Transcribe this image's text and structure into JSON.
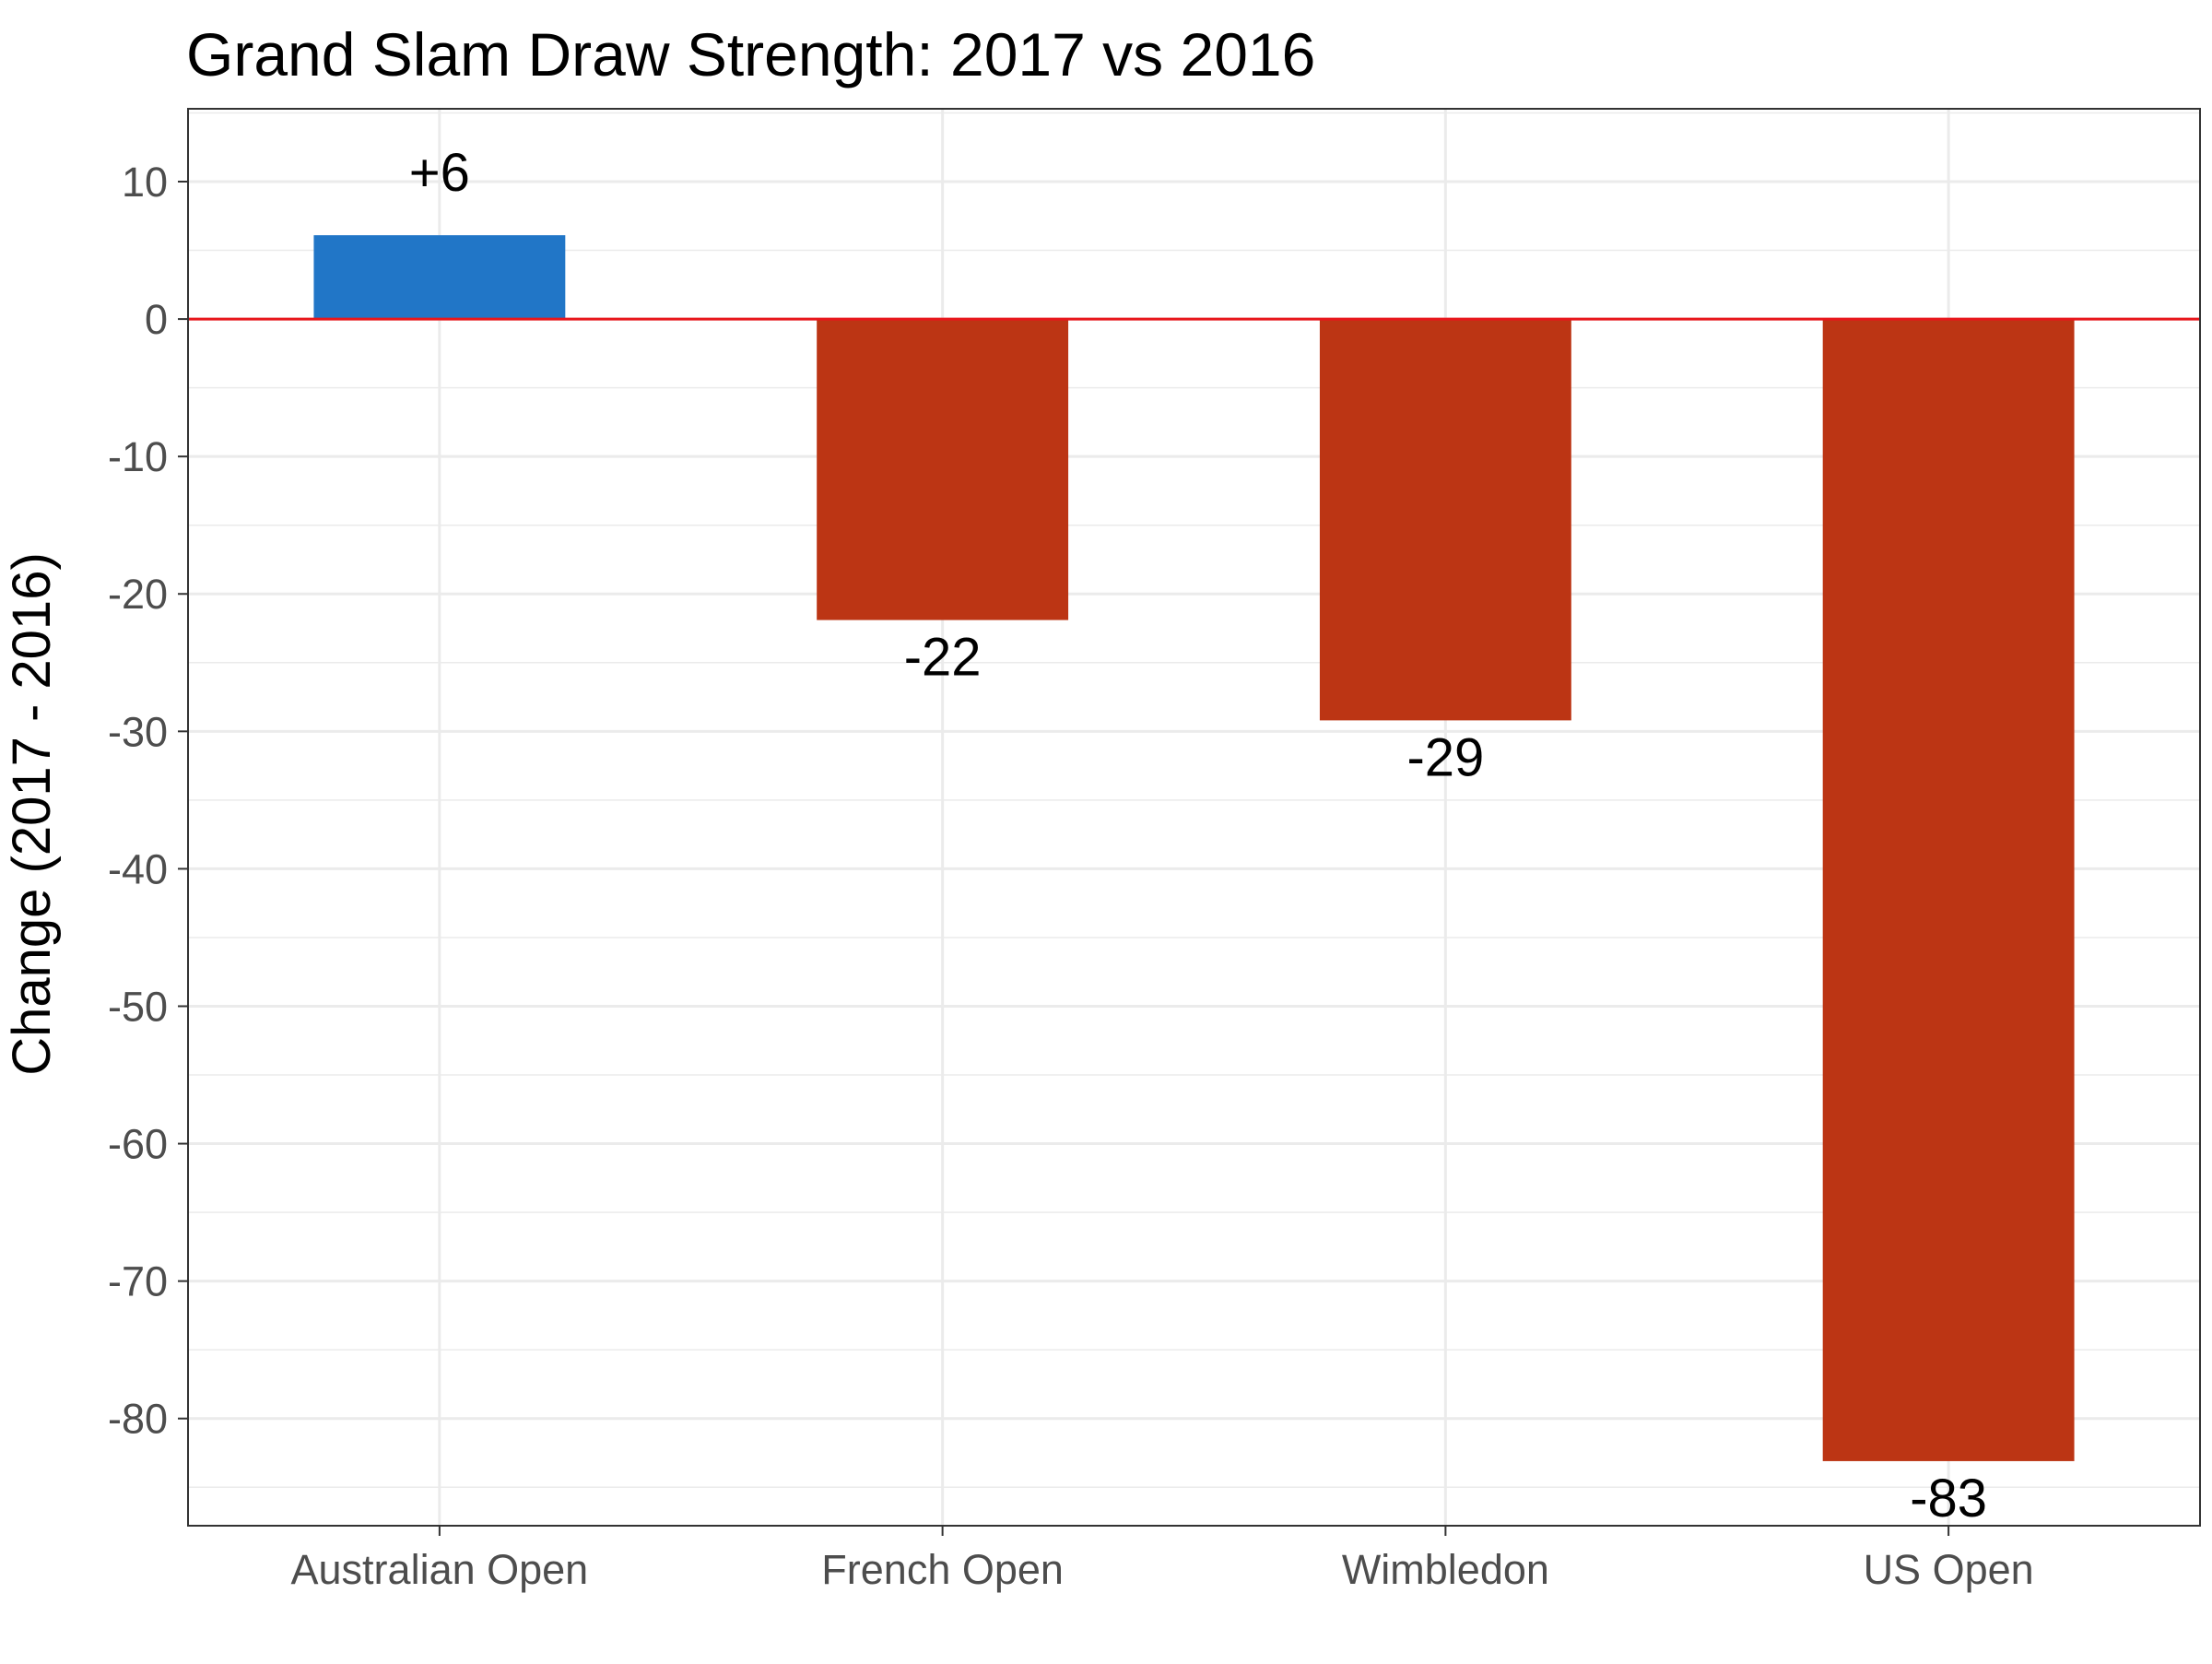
{
  "chart_data": {
    "type": "bar",
    "title": "Grand Slam Draw Strength: 2017 vs 2016",
    "xlabel": "",
    "ylabel": "Change (2017 - 2016)",
    "categories": [
      "Australian Open",
      "French Open",
      "Wimbledon",
      "US Open"
    ],
    "values": [
      6.1,
      -21.9,
      -29.2,
      -83.1
    ],
    "data_labels": [
      "+6",
      "-22",
      "-29",
      "-83"
    ],
    "ylim": [
      -87.8,
      15.3
    ],
    "yticks": [
      10,
      0,
      -10,
      -20,
      -30,
      -40,
      -50,
      -60,
      -70,
      -80
    ],
    "ytick_labels": [
      "10",
      "0",
      "-10",
      "-20",
      "-30",
      "-40",
      "-50",
      "-60",
      "-70",
      "-80"
    ],
    "grid": true,
    "reference_line": 0,
    "colors": {
      "positive": "#2176C7",
      "negative": "#BC3514",
      "reference_line": "#E8161B",
      "grid": "#EBEBEB",
      "panel_border": "#333333"
    }
  }
}
